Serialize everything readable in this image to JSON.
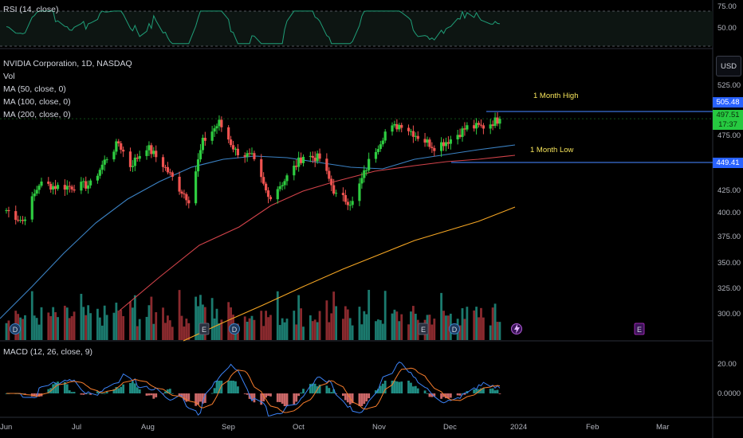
{
  "colors": {
    "up": "#2ecc40",
    "down": "#ef5350",
    "vol_up": "#1b7a6e",
    "vol_down": "#8a2a2e",
    "ma50": "#3b82c4",
    "ma100": "#d2434a",
    "ma200": "#f5a623",
    "rsi": "#1f9e78",
    "macd_line": "#3b82f6",
    "signal_line": "#f57c2c",
    "hline": "#3b6fd8",
    "annotation": "#f5e35a"
  },
  "header": {
    "symbol": "NVIDIA Corporation, 1D, NASDAQ",
    "vol": "Vol",
    "ma50": "MA (50, close, 0)",
    "ma100": "MA (100, close, 0)",
    "ma200": "MA (200, close, 0)"
  },
  "rsi": {
    "label": "RSI (14, close)",
    "ticks": [
      "75.00",
      "50.00"
    ]
  },
  "macd": {
    "label": "MACD (12, 26, close, 9)",
    "ticks": [
      "20.00",
      "0.0000"
    ]
  },
  "currency_button": "USD",
  "price_axis": [
    "525.00",
    "475.00",
    "450.00",
    "425.00",
    "400.00",
    "375.00",
    "350.00",
    "325.00",
    "300.00"
  ],
  "time_axis": [
    "Jun",
    "Jul",
    "Aug",
    "Sep",
    "Oct",
    "Nov",
    "Dec",
    "2024",
    "Feb",
    "Mar"
  ],
  "price_tags": {
    "high": "505.48",
    "last": "497.51",
    "countdown": "17:37",
    "low": "449.41"
  },
  "annotations": {
    "high_label": "1 Month High",
    "low_label": "1 Month Low"
  },
  "event_markers": [
    "D",
    "E",
    "D",
    "E",
    "D",
    "E"
  ],
  "chart_data": {
    "type": "candlestick",
    "title": "NVIDIA Corporation, 1D, NASDAQ",
    "interval": "1D",
    "x_range": [
      "2023-06",
      "2024-03"
    ],
    "ylim": [
      287,
      540
    ],
    "month_high": 505.48,
    "month_low": 449.41,
    "last_price": 497.51,
    "close_series": [
      {
        "date": "2023-06-01",
        "close": 397
      },
      {
        "date": "2023-06-08",
        "close": 385
      },
      {
        "date": "2023-06-15",
        "close": 426
      },
      {
        "date": "2023-06-22",
        "close": 423
      },
      {
        "date": "2023-06-30",
        "close": 423
      },
      {
        "date": "2023-07-07",
        "close": 425
      },
      {
        "date": "2023-07-14",
        "close": 455
      },
      {
        "date": "2023-07-19",
        "close": 471
      },
      {
        "date": "2023-07-24",
        "close": 446
      },
      {
        "date": "2023-07-31",
        "close": 467
      },
      {
        "date": "2023-08-07",
        "close": 447
      },
      {
        "date": "2023-08-14",
        "close": 421
      },
      {
        "date": "2023-08-18",
        "close": 409
      },
      {
        "date": "2023-08-24",
        "close": 472
      },
      {
        "date": "2023-08-31",
        "close": 493
      },
      {
        "date": "2023-09-07",
        "close": 462
      },
      {
        "date": "2023-09-14",
        "close": 455
      },
      {
        "date": "2023-09-21",
        "close": 411
      },
      {
        "date": "2023-09-28",
        "close": 430
      },
      {
        "date": "2023-10-06",
        "close": 457
      },
      {
        "date": "2023-10-13",
        "close": 454
      },
      {
        "date": "2023-10-20",
        "close": 413
      },
      {
        "date": "2023-10-27",
        "close": 405
      },
      {
        "date": "2023-11-03",
        "close": 450
      },
      {
        "date": "2023-11-10",
        "close": 483
      },
      {
        "date": "2023-11-17",
        "close": 492
      },
      {
        "date": "2023-11-24",
        "close": 478
      },
      {
        "date": "2023-12-01",
        "close": 467
      },
      {
        "date": "2023-12-08",
        "close": 475
      },
      {
        "date": "2023-12-15",
        "close": 488
      },
      {
        "date": "2023-12-22",
        "close": 489
      },
      {
        "date": "2023-12-29",
        "close": 497.51
      }
    ]
  }
}
